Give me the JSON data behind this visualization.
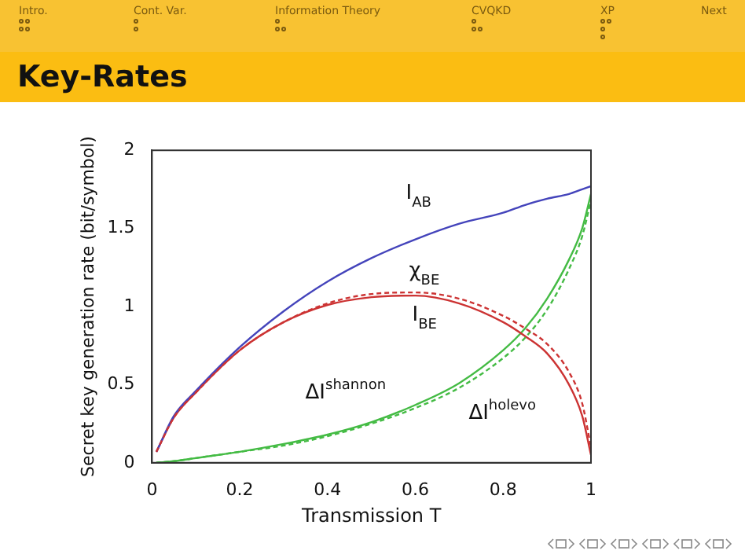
{
  "chart_data": {
    "type": "line",
    "title": "Key-Rates",
    "xlabel": "Transmission T",
    "ylabel": "Secret key generation rate (bit/symbol)",
    "annotations": [
      "Intro.",
      "Cont. Var.",
      "Information Theory",
      "CVQKD",
      "XP",
      "Next"
    ],
    "x": [
      0.01,
      0.05,
      0.1,
      0.2,
      0.3,
      0.4,
      0.5,
      0.6,
      0.7,
      0.8,
      0.85,
      0.9,
      0.95,
      0.98,
      1
    ],
    "series": [
      {
        "name": "I$_{AB}$",
        "color": "#4444bb",
        "values": [
          0.07,
          0.3,
          0.46,
          0.74,
          0.97,
          1.16,
          1.31,
          1.43,
          1.53,
          1.6,
          1.65,
          1.69,
          1.72,
          1.75,
          1.77
        ]
      },
      {
        "name": "χ$_{BE}$",
        "color": "#cc3333",
        "line_style": "dashed",
        "values": [
          0.07,
          0.29,
          0.45,
          0.72,
          0.9,
          1.02,
          1.08,
          1.09,
          1.05,
          0.94,
          0.86,
          0.76,
          0.58,
          0.38,
          0.1
        ]
      },
      {
        "name": "I$_{BE}$",
        "color": "#cc3333",
        "values": [
          0.07,
          0.29,
          0.45,
          0.72,
          0.9,
          1.01,
          1.06,
          1.07,
          1.02,
          0.9,
          0.81,
          0.7,
          0.5,
          0.3,
          0.05
        ]
      },
      {
        "name": "ΔI$^{shannon}$",
        "color": "#44bb44",
        "values": [
          0,
          0.01,
          0.03,
          0.07,
          0.12,
          0.18,
          0.26,
          0.37,
          0.51,
          0.72,
          0.86,
          1.05,
          1.3,
          1.5,
          1.72
        ]
      },
      {
        "name": "ΔI$^{holevo}$",
        "color": "#44bb44",
        "line_style": "dashed",
        "values": [
          0,
          0.01,
          0.03,
          0.07,
          0.11,
          0.17,
          0.25,
          0.35,
          0.48,
          0.67,
          0.8,
          0.98,
          1.24,
          1.45,
          1.68
        ]
      }
    ],
    "xlim": [
      0,
      1
    ],
    "xticks": [
      0,
      0.2,
      0.4,
      0.6,
      0.8,
      1
    ],
    "ylim": [
      0,
      2
    ],
    "yticks": [
      0,
      0.5,
      1,
      1.5,
      2
    ],
    "grid": false,
    "legend": false,
    "marker": "none",
    "line_style": "solid"
  }
}
